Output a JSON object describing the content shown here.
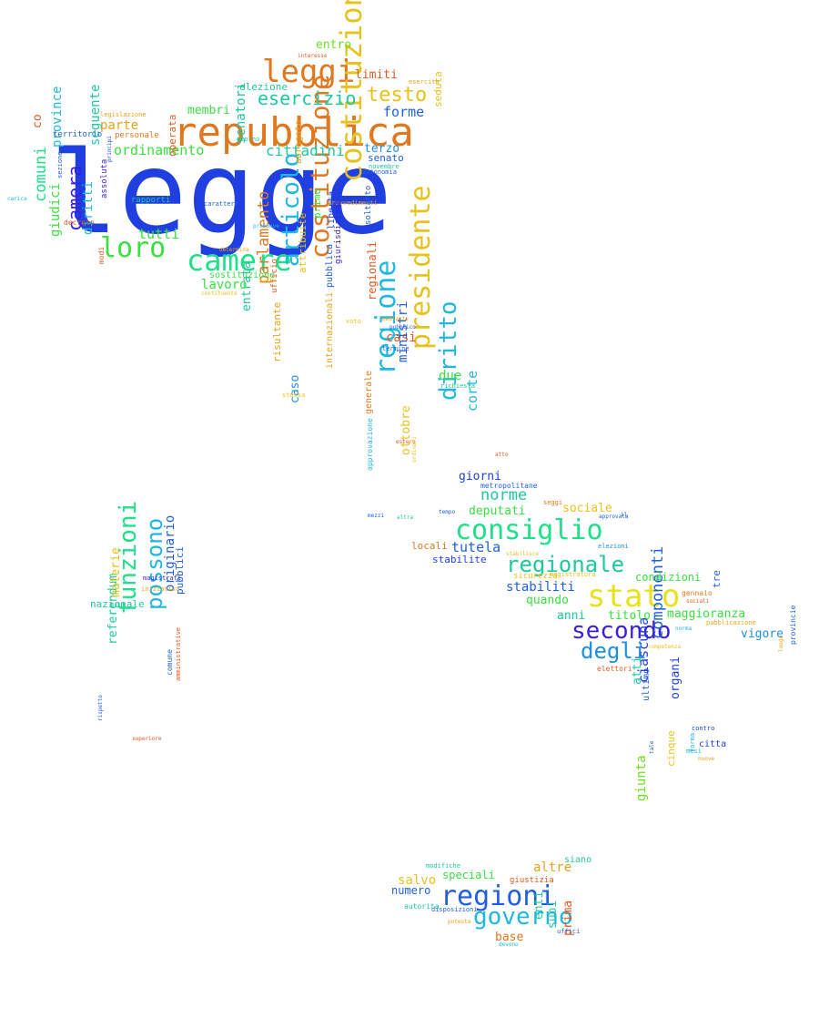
{
  "title": "",
  "words": [
    {
      "text": "legge",
      "color": "#1f3fe0"
    },
    {
      "text": "repubblica",
      "color": "#e0781f"
    },
    {
      "text": "leggi",
      "color": "#e0781f"
    },
    {
      "text": "camere",
      "color": "#1ee08a"
    },
    {
      "text": "loro",
      "color": "#3ae040"
    },
    {
      "text": "costituzionale",
      "color": "#e8c21c"
    },
    {
      "text": "costituzione",
      "color": "#e0781f"
    },
    {
      "text": "articolo",
      "color": "#1fb8e0"
    },
    {
      "text": "regione",
      "color": "#1fb8e0"
    },
    {
      "text": "presidente",
      "color": "#e8c21c"
    },
    {
      "text": "diritto",
      "color": "#1fb8e0"
    },
    {
      "text": "consiglio",
      "color": "#1ee08a"
    },
    {
      "text": "regionale",
      "color": "#1ec8a0"
    },
    {
      "text": "stato",
      "color": "#e8e21c"
    },
    {
      "text": "secondo",
      "color": "#3a1fe0"
    },
    {
      "text": "degli",
      "color": "#1f8fe0"
    },
    {
      "text": "regioni",
      "color": "#1f5fe0"
    },
    {
      "text": "governo",
      "color": "#1fb8e0"
    },
    {
      "text": "funzioni",
      "color": "#1ee08a"
    },
    {
      "text": "possono",
      "color": "#1fb8e0"
    },
    {
      "text": "esercizio",
      "color": "#1ec8a0"
    },
    {
      "text": "testo",
      "color": "#e8c21c"
    },
    {
      "text": "camera",
      "color": "#3a1fe0"
    },
    {
      "text": "comuni",
      "color": "#1ee08a"
    },
    {
      "text": "parlamento",
      "color": "#e0781f"
    },
    {
      "text": "norme",
      "color": "#1ec8a0"
    },
    {
      "text": "tutela",
      "color": "#1f5fe0"
    },
    {
      "text": "componenti",
      "color": "#1f5fe0"
    },
    {
      "text": "ciascuna",
      "color": "#1f3fe0"
    },
    {
      "text": "cittadini",
      "color": "#1ec8a0"
    },
    {
      "text": "ordinamento",
      "color": "#3ae040"
    },
    {
      "text": "tutti",
      "color": "#3ae040"
    },
    {
      "text": "forme",
      "color": "#1f5fe0"
    },
    {
      "text": "limiti",
      "color": "#e05a1f"
    },
    {
      "text": "entro",
      "color": "#6ee01f"
    },
    {
      "text": "membri",
      "color": "#3ae040"
    },
    {
      "text": "parte",
      "color": "#e8a21c"
    },
    {
      "text": "senatori",
      "color": "#1ec8a0"
    },
    {
      "text": "seguente",
      "color": "#1ec8a0"
    },
    {
      "text": "province",
      "color": "#1fb8e0"
    },
    {
      "text": "diritti",
      "color": "#1fb8e0"
    },
    {
      "text": "giudici",
      "color": "#3ae040"
    },
    {
      "text": "terzo",
      "color": "#1f8fe0"
    },
    {
      "text": "senato",
      "color": "#1f5fe0"
    },
    {
      "text": "elezione",
      "color": "#1ec8a0"
    },
    {
      "text": "co",
      "color": "#e05a1f"
    },
    {
      "text": "lavoro",
      "color": "#3ae040"
    },
    {
      "text": "sostituzione",
      "color": "#3ae040"
    },
    {
      "text": "entrata",
      "color": "#1ec8a0"
    },
    {
      "text": "casi",
      "color": "#e05a1f"
    },
    {
      "text": "due",
      "color": "#3ae040"
    },
    {
      "text": "ministri",
      "color": "#1f5fe0"
    },
    {
      "text": "corte",
      "color": "#1fb8e0"
    },
    {
      "text": "giorni",
      "color": "#1f3fe0"
    },
    {
      "text": "deputati",
      "color": "#3ae040"
    },
    {
      "text": "sociale",
      "color": "#e8c21c"
    },
    {
      "text": "stabiliti",
      "color": "#1f5fe0"
    },
    {
      "text": "quando",
      "color": "#3ae040"
    },
    {
      "text": "anni",
      "color": "#1ec8a0"
    },
    {
      "text": "titolo",
      "color": "#3ae040"
    },
    {
      "text": "maggioranza",
      "color": "#3ae040"
    },
    {
      "text": "condizioni",
      "color": "#3ae040"
    },
    {
      "text": "vigore",
      "color": "#1f8fe0"
    },
    {
      "text": "atti",
      "color": "#1ec8a0"
    },
    {
      "text": "organi",
      "color": "#1f3fe0"
    },
    {
      "text": "giunta",
      "color": "#6ee01f"
    },
    {
      "text": "speciali",
      "color": "#3ae040"
    },
    {
      "text": "altre",
      "color": "#e8a21c"
    },
    {
      "text": "salvo",
      "color": "#e8c21c"
    },
    {
      "text": "numero",
      "color": "#1f5fe0"
    },
    {
      "text": "base",
      "color": "#e0781f"
    },
    {
      "text": "enti",
      "color": "#1ec8a0"
    },
    {
      "text": "suoi",
      "color": "#1ec8a0"
    },
    {
      "text": "prima",
      "color": "#e05a1f"
    },
    {
      "text": "referendum",
      "color": "#1ec8a0"
    },
    {
      "text": "materie",
      "color": "#e8c21c"
    },
    {
      "text": "originario",
      "color": "#1f5fe0"
    },
    {
      "text": "nazionale",
      "color": "#1ec8a0"
    },
    {
      "text": "pubblici",
      "color": "#1f5fe0"
    },
    {
      "text": "regionali",
      "color": "#e05a1f"
    },
    {
      "text": "internazionali",
      "color": "#e8a21c"
    },
    {
      "text": "primo",
      "color": "#3ae040"
    },
    {
      "text": "attribuite",
      "color": "#e8c21c"
    },
    {
      "text": "ottobre",
      "color": "#e8c21c"
    },
    {
      "text": "caso",
      "color": "#1f8fe0"
    },
    {
      "text": "risultante",
      "color": "#e8a21c"
    },
    {
      "text": "abrogato",
      "color": "#e8a21c"
    },
    {
      "text": "operata",
      "color": "#e05a1f"
    },
    {
      "text": "stabilite",
      "color": "#1f3fe0"
    },
    {
      "text": "locali",
      "color": "#e0781f"
    },
    {
      "text": "tre",
      "color": "#1f5fe0"
    },
    {
      "text": "ultimo",
      "color": "#1f5fe0"
    },
    {
      "text": "citta",
      "color": "#1f3fe0"
    },
    {
      "text": "cinque",
      "color": "#e8c21c"
    },
    {
      "text": "pubblica",
      "color": "#1f5fe0"
    },
    {
      "text": "liberta",
      "color": "#1f3fe0"
    },
    {
      "text": "ufficio",
      "color": "#e05a1f"
    },
    {
      "text": "siano",
      "color": "#1ec8a0"
    },
    {
      "text": "territorio",
      "color": "#1f5fe0"
    },
    {
      "text": "personale",
      "color": "#e0781f"
    },
    {
      "text": "seduta",
      "color": "#e8c21c"
    },
    {
      "text": "rapporti",
      "color": "#1ec8a0"
    },
    {
      "text": "assoluta",
      "color": "#3a1fe0"
    },
    {
      "text": "decreto",
      "color": "#e05a1f"
    },
    {
      "text": "carattere",
      "color": "#1f5fe0"
    },
    {
      "text": "provvedimenti",
      "color": "#e8a21c"
    },
    {
      "text": "novembre",
      "color": "#1ec8a0"
    },
    {
      "text": "autonomia",
      "color": "#1f5fe0"
    },
    {
      "text": "esercita",
      "color": "#e8a21c"
    },
    {
      "text": "interesse",
      "color": "#e05a1f"
    },
    {
      "text": "legislazione",
      "color": "#e8a21c"
    },
    {
      "text": "metropolitane",
      "color": "#1f5fe0"
    },
    {
      "text": "gennaio",
      "color": "#e0781f"
    },
    {
      "text": "elettori",
      "color": "#e05a1f"
    },
    {
      "text": "magistrati",
      "color": "#3a1fe0"
    },
    {
      "text": "iniziativa",
      "color": "#e8a21c"
    },
    {
      "text": "comune",
      "color": "#1f5fe0"
    },
    {
      "text": "amministrative",
      "color": "#e05a1f"
    },
    {
      "text": "superiore",
      "color": "#e05a1f"
    },
    {
      "text": "modifiche",
      "color": "#1ec8a0"
    },
    {
      "text": "giustizia",
      "color": "#e05a1f"
    },
    {
      "text": "disposizioni",
      "color": "#1f5fe0"
    },
    {
      "text": "autorita",
      "color": "#1ec8a0"
    },
    {
      "text": "uffici",
      "color": "#1f5fe0"
    },
    {
      "text": "potesta",
      "color": "#e8a21c"
    },
    {
      "text": "devono",
      "color": "#1fb8e0"
    },
    {
      "text": "sicurezza",
      "color": "#e8c21c"
    },
    {
      "text": "magistratura",
      "color": "#e8c21c"
    },
    {
      "text": "elezioni",
      "color": "#1f8fe0"
    },
    {
      "text": "approvata",
      "color": "#1f5fe0"
    },
    {
      "text": "contro",
      "color": "#1f3fe0"
    },
    {
      "text": "mesi",
      "color": "#1fb8e0"
    },
    {
      "text": "provincie",
      "color": "#1f5fe0"
    },
    {
      "text": "luogo",
      "color": "#e8a21c"
    },
    {
      "text": "pubblicazione",
      "color": "#e8a21c"
    },
    {
      "text": "competenza",
      "color": "#e8c21c"
    },
    {
      "text": "termine",
      "color": "#1f5fe0"
    },
    {
      "text": "richiesta",
      "color": "#1ec8a0"
    },
    {
      "text": "stessa",
      "color": "#e8c21c"
    },
    {
      "text": "atto",
      "color": "#e05a1f"
    },
    {
      "text": "seggi",
      "color": "#e0781f"
    },
    {
      "text": "mezzi",
      "color": "#1f5fe0"
    },
    {
      "text": "tempo",
      "color": "#1f5fe0"
    },
    {
      "text": "sezione",
      "color": "#1f5fe0"
    },
    {
      "text": "principi",
      "color": "#1f3fe0"
    },
    {
      "text": "modi",
      "color": "#e05a1f"
    },
    {
      "text": "carica",
      "color": "#1fb8e0"
    },
    {
      "text": "determina",
      "color": "#e8a21c"
    },
    {
      "text": "valle",
      "color": "#e8c21c"
    },
    {
      "text": "costituente",
      "color": "#e8c21c"
    },
    {
      "text": "pubblico",
      "color": "#1f5fe0"
    },
    {
      "text": "mediante",
      "color": "#e8a21c"
    },
    {
      "text": "estero",
      "color": "#e05a1f"
    },
    {
      "text": "ordinari",
      "color": "#e8c21c"
    },
    {
      "text": "stabilisce",
      "color": "#e8c21c"
    },
    {
      "text": "rispetto",
      "color": "#1f5fe0"
    },
    {
      "text": "nuove",
      "color": "#e8a21c"
    },
    {
      "text": "forma",
      "color": "#1fb8e0"
    },
    {
      "text": "tale",
      "color": "#1f5fe0"
    },
    {
      "text": "norma",
      "color": "#1fb8e0"
    },
    {
      "text": "giorno",
      "color": "#1ec8a0"
    },
    {
      "text": "voto",
      "color": "#e8c21c"
    },
    {
      "text": "generale",
      "color": "#e0781f"
    },
    {
      "text": "altra",
      "color": "#1ec8a0"
    },
    {
      "text": "il",
      "color": "#1f5fe0"
    },
    {
      "text": "soltanto",
      "color": "#1f5fe0"
    },
    {
      "text": "giurisdizione",
      "color": "#3a1fe0"
    },
    {
      "text": "approvazione",
      "color": "#1fb8e0"
    },
    {
      "text": "sociali",
      "color": "#e05a1f"
    },
    {
      "text": "promuove",
      "color": "#1fb8e0"
    }
  ]
}
